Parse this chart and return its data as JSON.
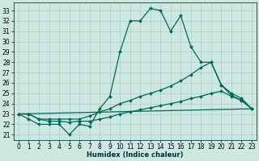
{
  "title": "",
  "xlabel": "Humidex (Indice chaleur)",
  "background_color": "#cce8e0",
  "grid_color": "#aacfc8",
  "line_color": "#006858",
  "xlim": [
    -0.5,
    23.5
  ],
  "ylim": [
    20.5,
    33.8
  ],
  "yticks": [
    21,
    22,
    23,
    24,
    25,
    26,
    27,
    28,
    29,
    30,
    31,
    32,
    33
  ],
  "xticks": [
    0,
    1,
    2,
    3,
    4,
    5,
    6,
    7,
    8,
    9,
    10,
    11,
    12,
    13,
    14,
    15,
    16,
    17,
    18,
    19,
    20,
    21,
    22,
    23
  ],
  "series": [
    {
      "x": [
        0,
        1,
        2,
        3,
        4,
        5,
        6,
        7,
        8,
        9,
        10,
        11,
        12,
        13,
        14,
        15,
        16,
        17,
        18,
        19,
        20,
        21,
        22,
        23
      ],
      "y": [
        23,
        22.5,
        22,
        22,
        22,
        21,
        22,
        21.8,
        23.5,
        24.7,
        29,
        32,
        32,
        33.2,
        33,
        31,
        32.5,
        29.5,
        28,
        28,
        25.8,
        25,
        24.5,
        23.5
      ],
      "has_marker": true
    },
    {
      "x": [
        0,
        1,
        2,
        3,
        4,
        5,
        6,
        7,
        8,
        9,
        10,
        11,
        12,
        13,
        14,
        15,
        16,
        17,
        18,
        19,
        20,
        21,
        22,
        23
      ],
      "y": [
        23,
        23,
        22.5,
        22.5,
        22.5,
        22.5,
        22.5,
        22.8,
        23.2,
        23.5,
        24,
        24.3,
        24.7,
        25,
        25.3,
        25.7,
        26.2,
        26.8,
        27.5,
        28,
        25.8,
        24.8,
        24.3,
        23.5
      ],
      "has_marker": true
    },
    {
      "x": [
        0,
        1,
        2,
        3,
        4,
        5,
        6,
        7,
        8,
        9,
        10,
        11,
        12,
        13,
        14,
        15,
        16,
        17,
        18,
        19,
        20,
        21,
        22,
        23
      ],
      "y": [
        23,
        23,
        22.5,
        22.3,
        22.3,
        22.2,
        22.3,
        22.3,
        22.5,
        22.7,
        23,
        23.2,
        23.4,
        23.6,
        23.8,
        24,
        24.2,
        24.5,
        24.7,
        25,
        25.2,
        24.7,
        24.3,
        23.5
      ],
      "has_marker": true
    },
    {
      "x": [
        0,
        23
      ],
      "y": [
        23,
        23.5
      ],
      "has_marker": false
    }
  ],
  "xlabel_fontsize": 6,
  "tick_fontsize": 5.5,
  "linewidth": 0.9,
  "markersize": 2.0
}
